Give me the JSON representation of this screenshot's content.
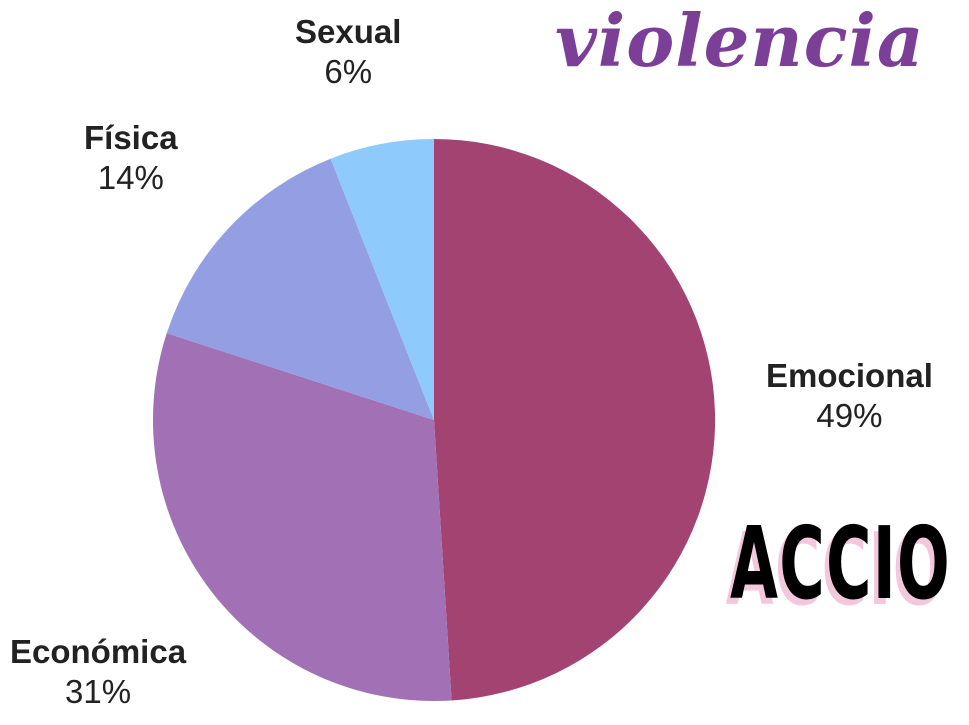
{
  "header": {
    "title_word": "violencia"
  },
  "banner": {
    "partial_word": "ACCIO"
  },
  "colors": {
    "emocional": "#a34372",
    "economica": "#a271b5",
    "fisica": "#949fe3",
    "sexual": "#8ecafb"
  },
  "chart_data": {
    "type": "pie",
    "title": "",
    "slices": [
      {
        "label": "Emocional",
        "value": 49,
        "display": "49%",
        "color": "#a34372"
      },
      {
        "label": "Económica",
        "value": 31,
        "display": "31%",
        "color": "#a271b5"
      },
      {
        "label": "Física",
        "value": 14,
        "display": "14%",
        "color": "#949fe3"
      },
      {
        "label": "Sexual",
        "value": 6,
        "display": "6%",
        "color": "#8ecafb"
      }
    ],
    "start": "12 o'clock",
    "direction": "clockwise",
    "legend": "none"
  }
}
